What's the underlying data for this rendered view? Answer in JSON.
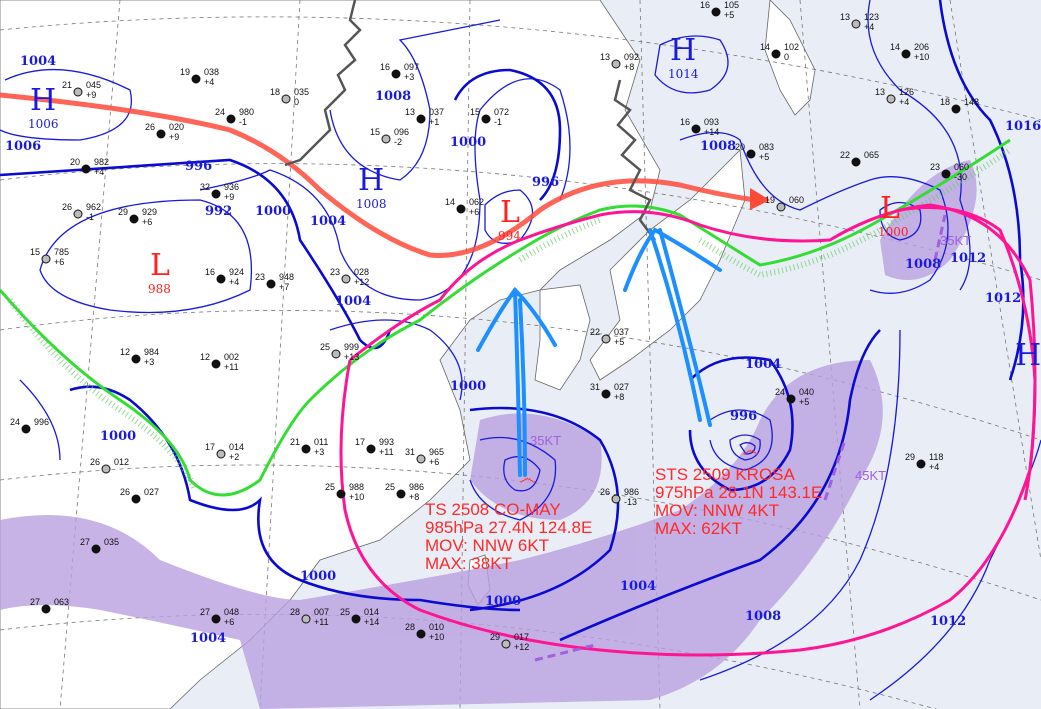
{
  "colors": {
    "ocean": "#e9eef6",
    "land": "#ffffff",
    "isobar": "#1a1adc",
    "high": "#1a1adc",
    "low": "#ff2020",
    "jet_arrow": "#ff4a3a",
    "annotation_circle": "#ff1493",
    "steering_arrows": "#1e8fff",
    "front": "#33dd33",
    "wind_area": "#b9a0e0",
    "wind_label": "#a060e0"
  },
  "pressure_centers": [
    {
      "type": "H",
      "value": "1006"
    },
    {
      "type": "L",
      "value": "988"
    },
    {
      "type": "H",
      "value": "1008"
    },
    {
      "type": "L",
      "value": "994"
    },
    {
      "type": "H",
      "value": "1014"
    },
    {
      "type": "L",
      "value": "1000"
    },
    {
      "type": "H",
      "value": ""
    }
  ],
  "isobar_labels": [
    "1004",
    "1006",
    "996",
    "992",
    "1000",
    "1004",
    "1008",
    "1000",
    "996",
    "1004",
    "1008",
    "1008",
    "1016",
    "1012",
    "1004",
    "996",
    "1000",
    "1000",
    "1000",
    "1004",
    "1000",
    "1004",
    "1008",
    "1012",
    "1012"
  ],
  "wind_labels": [
    "35KT",
    "45KT",
    "35KT"
  ],
  "storms": [
    {
      "lines": [
        "TS 2508 CO-MAY",
        "985hPa 27.4N 124.8E",
        "MOV: NNW 6KT",
        "MAX: 38KT"
      ]
    },
    {
      "lines": [
        "STS 2509 KROSA",
        "975hPa 28.1N 143.1E",
        "MOV: NNW 4KT",
        "MAX: 62KT"
      ]
    }
  ],
  "stations": [
    {
      "t": "21",
      "p": "045",
      "d": "+9"
    },
    {
      "t": "19",
      "p": "038",
      "d": "+4"
    },
    {
      "t": "24",
      "p": "980",
      "d": "-1"
    },
    {
      "t": "18",
      "p": "035",
      "d": "0"
    },
    {
      "t": "26",
      "p": "020",
      "d": "+9"
    },
    {
      "t": "20",
      "p": "982",
      "d": "+4"
    },
    {
      "t": "26",
      "p": "962",
      "d": "-1"
    },
    {
      "t": "29",
      "p": "929",
      "d": "+6"
    },
    {
      "t": "32",
      "p": "936",
      "d": "+9"
    },
    {
      "t": "15",
      "p": "785",
      "d": "+6"
    },
    {
      "t": "16",
      "p": "924",
      "d": "+4"
    },
    {
      "t": "23",
      "p": "948",
      "d": "+7"
    },
    {
      "t": "23",
      "p": "028",
      "d": "+12"
    },
    {
      "t": "16",
      "p": "097",
      "d": "+3"
    },
    {
      "t": "13",
      "p": "037",
      "d": "+1"
    },
    {
      "t": "15",
      "p": "096",
      "d": "-2"
    },
    {
      "t": "14",
      "p": "062",
      "d": "+6"
    },
    {
      "t": "15",
      "p": "072",
      "d": "-1"
    },
    {
      "t": "13",
      "p": "092",
      "d": "+8"
    },
    {
      "t": "16",
      "p": "093",
      "d": "+14"
    },
    {
      "t": "20",
      "p": "083",
      "d": "+5"
    },
    {
      "t": "19",
      "p": "060",
      "d": ""
    },
    {
      "t": "22",
      "p": "065",
      "d": ""
    },
    {
      "t": "14",
      "p": "206",
      "d": "+10"
    },
    {
      "t": "13",
      "p": "126",
      "d": "+4"
    },
    {
      "t": "18",
      "p": "148",
      "d": ""
    },
    {
      "t": "23",
      "p": "060",
      "d": "-30"
    },
    {
      "t": "13",
      "p": "123",
      "d": "+4"
    },
    {
      "t": "14",
      "p": "102",
      "d": "0"
    },
    {
      "t": "16",
      "p": "105",
      "d": "+5"
    },
    {
      "t": "25",
      "p": "999",
      "d": "+13"
    },
    {
      "t": "12",
      "p": "984",
      "d": "+3"
    },
    {
      "t": "12",
      "p": "002",
      "d": "+11"
    },
    {
      "t": "17",
      "p": "014",
      "d": "+2"
    },
    {
      "t": "21",
      "p": "011",
      "d": "+3"
    },
    {
      "t": "17",
      "p": "993",
      "d": "+11"
    },
    {
      "t": "31",
      "p": "965",
      "d": "+6"
    },
    {
      "t": "25",
      "p": "988",
      "d": "+10"
    },
    {
      "t": "25",
      "p": "986",
      "d": "+8"
    },
    {
      "t": "26",
      "p": "986",
      "d": "-13"
    },
    {
      "t": "29",
      "p": "118",
      "d": "+4"
    },
    {
      "t": "24",
      "p": "996",
      "d": ""
    },
    {
      "t": "26",
      "p": "012",
      "d": ""
    },
    {
      "t": "26",
      "p": "027",
      "d": ""
    },
    {
      "t": "27",
      "p": "048",
      "d": "+6"
    },
    {
      "t": "28",
      "p": "007",
      "d": "+11"
    },
    {
      "t": "25",
      "p": "014",
      "d": "+14"
    },
    {
      "t": "28",
      "p": "010",
      "d": "+10"
    },
    {
      "t": "29",
      "p": "017",
      "d": "+12"
    },
    {
      "t": "27",
      "p": "035",
      "d": ""
    },
    {
      "t": "27",
      "p": "063",
      "d": ""
    },
    {
      "t": "22",
      "p": "037",
      "d": "+5"
    },
    {
      "t": "31",
      "p": "027",
      "d": "+8"
    },
    {
      "t": "24",
      "p": "040",
      "d": "+5"
    }
  ]
}
